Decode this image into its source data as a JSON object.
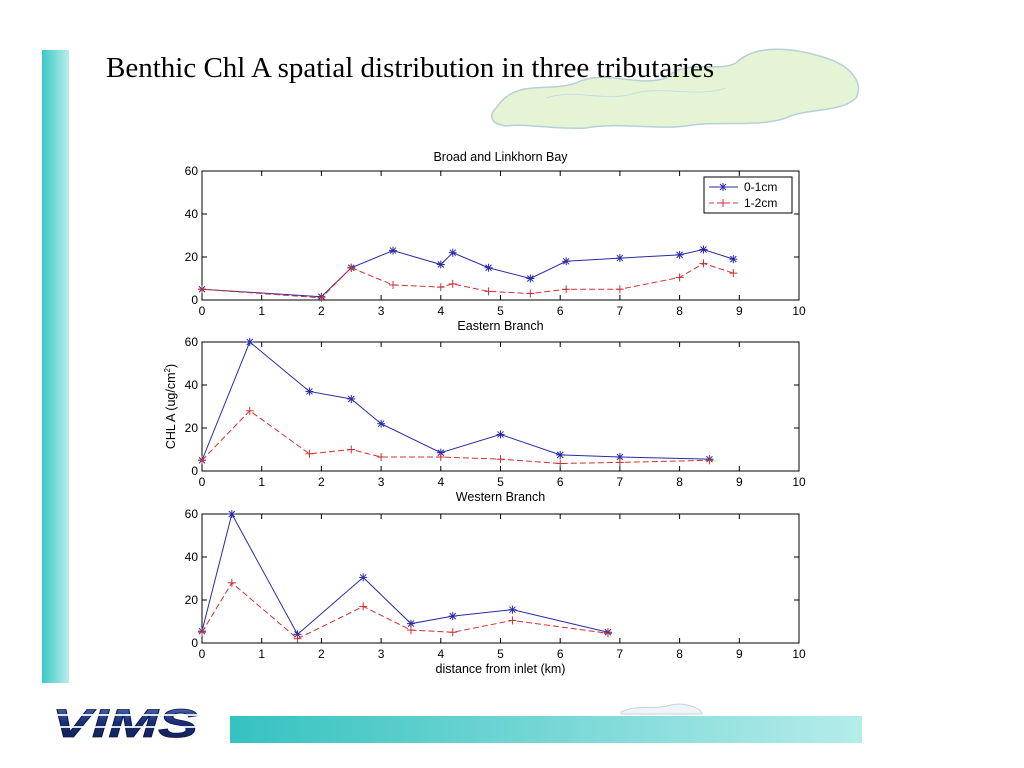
{
  "slide": {
    "title": "Benthic Chl A spatial distribution in three tributaries",
    "logo_text": "VIMS"
  },
  "colors": {
    "accent_teal": "#3cc9c6",
    "series_0_1cm": "#2a2aa8",
    "series_1_2cm": "#d03030"
  },
  "chart_data": [
    {
      "type": "line",
      "title": "Broad and Linkhorn Bay",
      "xlabel": "Eastern Branch",
      "ylabel": "",
      "xlim": [
        0,
        10
      ],
      "ylim": [
        0,
        60
      ],
      "xticks": [
        0,
        1,
        2,
        3,
        4,
        5,
        6,
        7,
        8,
        9,
        10
      ],
      "yticks": [
        0,
        20,
        40,
        60
      ],
      "legend": "top-right",
      "series": [
        {
          "name": "0-1cm",
          "marker": "*",
          "style": "solid",
          "x": [
            0,
            2,
            2.5,
            3.2,
            4,
            4.2,
            4.8,
            5.5,
            6.1,
            7,
            8,
            8.4,
            8.9
          ],
          "y": [
            5,
            1.5,
            15,
            23,
            16.5,
            22,
            15,
            10,
            18,
            19.5,
            21,
            23.5,
            19
          ]
        },
        {
          "name": "1-2cm",
          "marker": "+",
          "style": "dashed",
          "x": [
            0,
            2,
            2.5,
            3.2,
            4,
            4.2,
            4.8,
            5.5,
            6.1,
            7,
            8,
            8.4,
            8.9
          ],
          "y": [
            5,
            1,
            15,
            7,
            6,
            7.5,
            4,
            3,
            5,
            5,
            10.5,
            17,
            12.5
          ]
        }
      ]
    },
    {
      "type": "line",
      "title": "",
      "xlabel": "Western Branch",
      "ylabel": "CHL A (ug/cm2)",
      "xlim": [
        0,
        10
      ],
      "ylim": [
        0,
        60
      ],
      "xticks": [
        0,
        1,
        2,
        3,
        4,
        5,
        6,
        7,
        8,
        9,
        10
      ],
      "yticks": [
        0,
        20,
        40,
        60
      ],
      "series": [
        {
          "name": "0-1cm",
          "marker": "*",
          "style": "solid",
          "x": [
            0,
            0.8,
            1.8,
            2.5,
            3,
            4,
            5,
            6,
            7,
            8.5
          ],
          "y": [
            5,
            60,
            37,
            33.5,
            22,
            8.5,
            17,
            7.5,
            6.5,
            5.5
          ]
        },
        {
          "name": "1-2cm",
          "marker": "+",
          "style": "dashed",
          "x": [
            0,
            0.8,
            1.8,
            2.5,
            3,
            4,
            5,
            6,
            7,
            8.5
          ],
          "y": [
            5,
            28,
            8,
            10,
            6.5,
            6.5,
            5.5,
            3.5,
            4,
            5
          ]
        }
      ]
    },
    {
      "type": "line",
      "title": "",
      "xlabel": "distance from inlet (km)",
      "ylabel": "",
      "xlim": [
        0,
        10
      ],
      "ylim": [
        0,
        60
      ],
      "xticks": [
        0,
        1,
        2,
        3,
        4,
        5,
        6,
        7,
        8,
        9,
        10
      ],
      "yticks": [
        0,
        20,
        40,
        60
      ],
      "series": [
        {
          "name": "0-1cm",
          "marker": "*",
          "style": "solid",
          "x": [
            0,
            0.5,
            1.6,
            2.7,
            3.5,
            4.2,
            5.2,
            6.8
          ],
          "y": [
            5.5,
            60,
            4,
            30.5,
            9,
            12.5,
            15.5,
            5
          ]
        },
        {
          "name": "1-2cm",
          "marker": "+",
          "style": "dashed",
          "x": [
            0,
            0.5,
            1.6,
            2.7,
            3.5,
            4.2,
            5.2,
            6.8
          ],
          "y": [
            5,
            28,
            2,
            17,
            6,
            5,
            10.5,
            4.5
          ]
        }
      ]
    }
  ]
}
